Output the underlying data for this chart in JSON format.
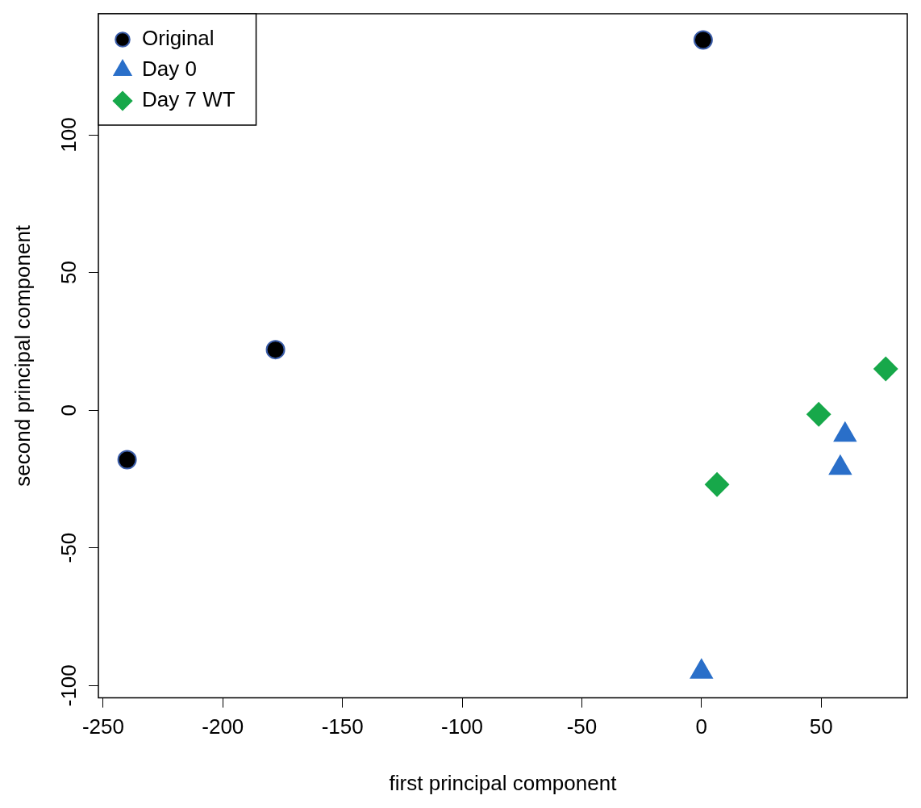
{
  "chart_data": {
    "type": "scatter",
    "xlabel": "first principal component",
    "ylabel": "second principal component",
    "xlim": [
      -252,
      86
    ],
    "ylim": [
      -104.5,
      144
    ],
    "xticks": [
      -250,
      -200,
      -150,
      -100,
      -50,
      0,
      50
    ],
    "yticks": [
      -100,
      -50,
      0,
      50,
      100
    ],
    "legend": "top left",
    "series": [
      {
        "name": "Original",
        "color": "#000000",
        "marker": "circle",
        "x": [
          0.7,
          -178,
          -240
        ],
        "values": [
          134.5,
          22,
          -18
        ]
      },
      {
        "name": "Day 0",
        "color": "#2a6fc9",
        "marker": "triangle",
        "x": [
          60,
          58,
          0
        ],
        "values": [
          -9,
          -21,
          -95
        ]
      },
      {
        "name": "Day 7 WT",
        "color": "#17a84a",
        "marker": "diamond",
        "x": [
          77,
          49,
          6.5
        ],
        "values": [
          15,
          -1.5,
          -27
        ]
      }
    ]
  }
}
